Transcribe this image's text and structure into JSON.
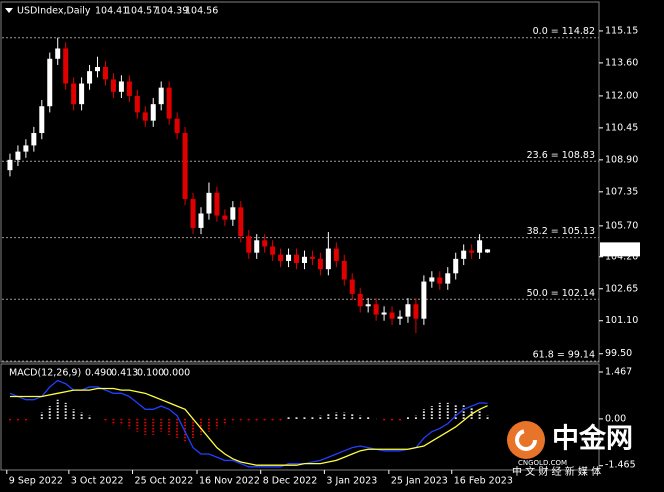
{
  "header": {
    "symbol": "USDIndex,Daily",
    "ohlc": [
      104.41,
      104.57,
      104.39,
      104.56
    ]
  },
  "chart_data": [
    {
      "type": "candlestick",
      "up_color": "#ffffff",
      "down_color": "#e00000",
      "grid": false,
      "open": [
        108.4,
        108.9,
        109.3,
        109.6,
        110.2,
        111.5,
        113.8,
        114.3,
        112.6,
        111.6,
        112.6,
        113.2,
        113.4,
        112.8,
        112.2,
        112.7,
        112.0,
        111.2,
        110.8,
        111.6,
        112.4,
        110.9,
        110.2,
        107.0,
        105.6,
        106.3,
        107.3,
        106.2,
        106.0,
        106.6,
        105.2,
        104.4,
        105.0,
        104.7,
        104.3,
        104.0,
        104.3,
        103.9,
        104.2,
        104.1,
        103.6,
        104.6,
        104.0,
        103.1,
        102.4,
        101.8,
        101.9,
        101.4,
        101.5,
        101.2,
        101.3,
        101.9,
        101.2,
        103.0,
        103.2,
        102.9,
        103.4,
        104.1,
        104.5,
        104.4,
        104.41
      ],
      "high": [
        109.2,
        109.6,
        109.9,
        110.5,
        111.8,
        114.1,
        114.82,
        114.6,
        112.9,
        112.9,
        113.5,
        113.9,
        113.7,
        113.1,
        113.0,
        113.0,
        112.3,
        111.5,
        111.9,
        112.7,
        112.7,
        111.2,
        110.5,
        107.3,
        106.6,
        107.8,
        107.6,
        106.5,
        106.9,
        106.9,
        105.5,
        105.3,
        105.3,
        105.0,
        104.6,
        104.6,
        104.6,
        104.5,
        104.5,
        104.4,
        105.4,
        104.9,
        104.3,
        103.4,
        102.7,
        102.2,
        102.2,
        101.8,
        101.8,
        101.6,
        102.2,
        102.2,
        103.3,
        103.5,
        103.5,
        103.7,
        104.4,
        104.8,
        104.8,
        105.3,
        104.57
      ],
      "low": [
        108.1,
        108.6,
        109.0,
        109.3,
        109.9,
        111.2,
        113.5,
        112.3,
        111.3,
        111.3,
        112.3,
        112.9,
        112.5,
        111.9,
        111.9,
        111.7,
        110.9,
        110.5,
        110.5,
        111.3,
        110.6,
        109.9,
        106.7,
        105.3,
        105.3,
        106.0,
        105.9,
        105.7,
        105.7,
        104.9,
        104.1,
        104.1,
        104.4,
        104.0,
        103.7,
        103.7,
        103.6,
        103.6,
        103.8,
        103.3,
        103.3,
        103.7,
        102.8,
        102.1,
        101.5,
        101.5,
        101.1,
        101.1,
        100.9,
        100.9,
        101.0,
        100.5,
        100.9,
        102.7,
        102.6,
        102.6,
        103.1,
        103.8,
        104.1,
        104.1,
        104.39
      ],
      "close": [
        108.9,
        109.3,
        109.6,
        110.2,
        111.5,
        113.8,
        114.3,
        112.6,
        111.6,
        112.6,
        113.2,
        113.4,
        112.8,
        112.2,
        112.7,
        112.0,
        111.2,
        110.8,
        111.6,
        112.4,
        110.9,
        110.2,
        107.0,
        105.6,
        106.3,
        107.3,
        106.2,
        106.0,
        106.6,
        105.2,
        104.4,
        105.0,
        104.7,
        104.3,
        104.0,
        104.3,
        103.9,
        104.2,
        104.1,
        103.6,
        104.6,
        104.0,
        103.1,
        102.4,
        101.8,
        101.9,
        101.4,
        101.5,
        101.2,
        101.3,
        101.9,
        101.2,
        103.0,
        103.2,
        102.9,
        103.4,
        104.1,
        104.5,
        104.4,
        105.0,
        104.56
      ],
      "xlim": [
        -1,
        74
      ],
      "ylim": [
        99.1,
        115.68
      ],
      "yticks": [
        115.15,
        {
          "value": 113.6,
          "label": "113.60"
        },
        {
          "value": 112,
          "label": "112.00"
        },
        110.45,
        {
          "value": 108.9,
          "label": "108.90"
        },
        107.35,
        {
          "value": 105.7,
          "label": "105.70"
        },
        {
          "value": 104.2,
          "label": "104.20"
        },
        102.65,
        {
          "value": 101.1,
          "label": "101.10"
        },
        {
          "value": 99.5,
          "label": "99.50"
        }
      ],
      "levels": [
        {
          "value": 114.82,
          "label": "0.0 = 114.82"
        },
        {
          "value": 108.83,
          "label": "23.6 = 108.83"
        },
        {
          "value": 105.13,
          "label": "38.2 = 105.13"
        },
        {
          "value": 102.14,
          "label": "50.0 = 102.14"
        },
        {
          "value": 99.14,
          "label": "61.8 = 99.14"
        }
      ]
    },
    {
      "type": "macd",
      "title": "MACD(12,26,9)",
      "header_values": [
        {
          "value": 0.49,
          "label": "0.490"
        },
        {
          "value": 0.413,
          "label": "0.413"
        },
        {
          "value": 0.1,
          "label": "0.100"
        },
        {
          "value": 0,
          "label": "0.000"
        }
      ],
      "xlim": [
        -1,
        74
      ],
      "ylim": [
        -1.6,
        1.655
      ],
      "yticks": [
        1.467,
        {
          "value": 0,
          "label": "0.00"
        },
        -1.465
      ],
      "xticks": [
        {
          "value": -0.4,
          "label": "9 Sep 2022"
        },
        {
          "value": 7.4,
          "label": "3 Oct 2022"
        },
        {
          "value": 15.4,
          "label": "25 Oct 2022"
        },
        {
          "value": 23.5,
          "label": "16 Nov 2022"
        },
        {
          "value": 31.5,
          "label": "8 Dec 2022"
        },
        {
          "value": 39.5,
          "label": "3 Jan 2023"
        },
        {
          "value": 47.6,
          "label": "25 Jan 2023"
        },
        {
          "value": 55.5,
          "label": "16 Feb 2023"
        }
      ],
      "histogram": {
        "pos_color": "#ffffff",
        "neg_color": "#e00000",
        "values": [
          -0.1,
          -0.1,
          -0.1,
          0.0,
          0.2,
          0.4,
          0.6,
          0.5,
          0.3,
          0.2,
          0.1,
          0.0,
          -0.1,
          -0.2,
          -0.2,
          -0.3,
          -0.4,
          -0.5,
          -0.5,
          -0.4,
          -0.5,
          -0.6,
          -0.7,
          -0.6,
          -0.5,
          -0.4,
          -0.3,
          -0.2,
          -0.1,
          -0.1,
          -0.1,
          -0.1,
          -0.05,
          -0.05,
          -0.05,
          0.05,
          0.05,
          0.05,
          0.05,
          0.1,
          0.15,
          0.2,
          0.2,
          0.15,
          0.1,
          0.05,
          0.0,
          -0.05,
          -0.05,
          -0.05,
          0.05,
          0.1,
          0.3,
          0.4,
          0.5,
          0.5,
          0.45,
          0.45,
          0.35,
          0.3,
          0.1
        ]
      },
      "series": [
        {
          "color": "#2040ff",
          "values": [
            0.8,
            0.7,
            0.6,
            0.6,
            0.7,
            1.0,
            1.2,
            1.1,
            0.9,
            0.9,
            1.0,
            1.0,
            0.9,
            0.8,
            0.8,
            0.7,
            0.5,
            0.3,
            0.3,
            0.4,
            0.3,
            0.1,
            -0.4,
            -0.9,
            -1.1,
            -1.1,
            -1.2,
            -1.3,
            -1.3,
            -1.4,
            -1.5,
            -1.5,
            -1.5,
            -1.5,
            -1.5,
            -1.4,
            -1.4,
            -1.4,
            -1.35,
            -1.3,
            -1.2,
            -1.1,
            -1.0,
            -0.9,
            -0.85,
            -0.9,
            -0.95,
            -1.0,
            -1.0,
            -1.0,
            -0.95,
            -0.9,
            -0.6,
            -0.4,
            -0.3,
            -0.15,
            0.1,
            0.3,
            0.4,
            0.5,
            0.49
          ]
        },
        {
          "color": "#ffff40",
          "values": [
            0.7,
            0.7,
            0.7,
            0.7,
            0.7,
            0.75,
            0.8,
            0.85,
            0.9,
            0.9,
            0.9,
            0.95,
            0.95,
            0.95,
            0.9,
            0.9,
            0.85,
            0.8,
            0.7,
            0.6,
            0.5,
            0.4,
            0.3,
            0.0,
            -0.3,
            -0.6,
            -0.9,
            -1.1,
            -1.25,
            -1.35,
            -1.4,
            -1.45,
            -1.45,
            -1.45,
            -1.45,
            -1.45,
            -1.45,
            -1.4,
            -1.4,
            -1.4,
            -1.35,
            -1.3,
            -1.2,
            -1.1,
            -1.0,
            -0.95,
            -0.95,
            -0.95,
            -0.95,
            -0.95,
            -0.95,
            -0.9,
            -0.85,
            -0.7,
            -0.55,
            -0.4,
            -0.25,
            -0.05,
            0.15,
            0.3,
            0.413
          ]
        }
      ]
    }
  ],
  "watermark": {
    "brand": "中金网",
    "site": "CNGOLD.COM",
    "tagline": "中 文 财 经 新 媒 体"
  }
}
